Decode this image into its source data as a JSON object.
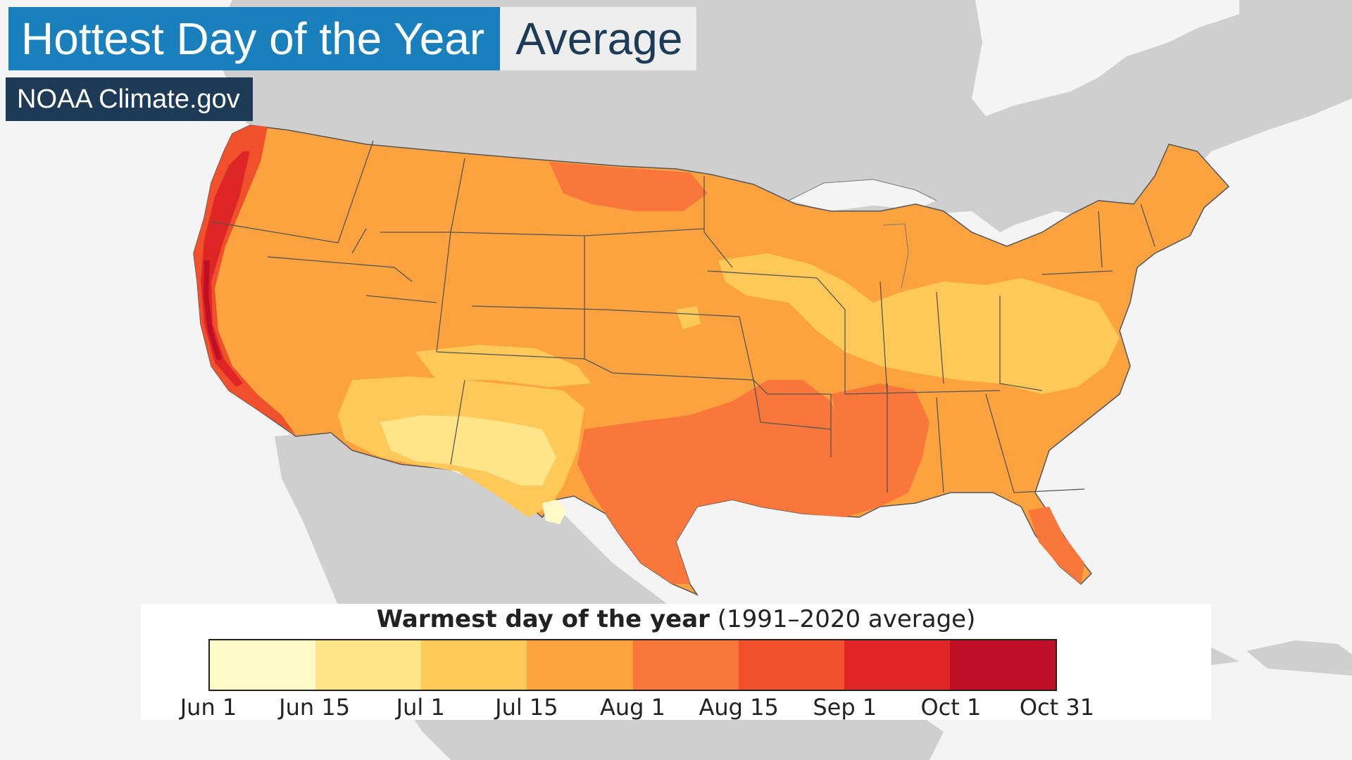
{
  "title": {
    "main": "Hottest Day of the Year",
    "sub": "Average"
  },
  "source": "NOAA Climate.gov",
  "legend": {
    "title_bold": "Warmest day of the year",
    "title_paren": "(1991–2020 average)",
    "ticks": [
      "Jun 1",
      "Jun 15",
      "Jul 1",
      "Jul 15",
      "Aug 1",
      "Aug 15",
      "Sep 1",
      "Oct 1",
      "Oct 31"
    ],
    "colors": [
      "#fffbc8",
      "#ffe58a",
      "#ffc95a",
      "#fca340",
      "#f9773a",
      "#f0512c",
      "#df2626",
      "#bf0f26",
      "#7f0018"
    ]
  },
  "map": {
    "land_color": "#cfcfcf",
    "water_color": "#f4f4f4",
    "border_color": "#555555",
    "subject": "Contiguous United States",
    "region_dates": {
      "pacific_coast": "Sep 1 – Oct 1",
      "southern_plains_texas": "Aug 1 – Aug 15",
      "southeast": "Aug 1",
      "southwest_desert": "Jun 15 – Jul 1",
      "midwest_corn_belt": "Jul 1 – Jul 15",
      "northern_plains": "Jul 15 – Aug 1",
      "northeast": "Jul 15"
    }
  }
}
